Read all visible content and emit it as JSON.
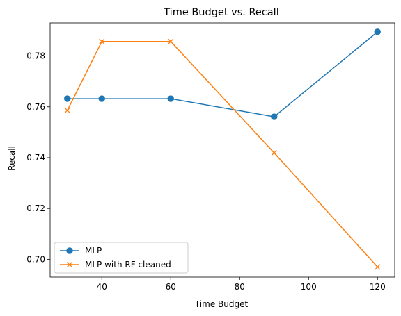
{
  "chart_data": {
    "type": "line",
    "title": "Time Budget vs. Recall",
    "xlabel": "Time Budget",
    "ylabel": "Recall",
    "xlim": [
      25,
      125
    ],
    "ylim": [
      0.693,
      0.793
    ],
    "x_ticks": [
      40,
      60,
      80,
      100,
      120
    ],
    "y_ticks": [
      0.7,
      0.72,
      0.74,
      0.76,
      0.78
    ],
    "y_tick_labels": [
      "0.70",
      "0.72",
      "0.74",
      "0.76",
      "0.78"
    ],
    "grid": false,
    "legend_position": "lower-left",
    "series": [
      {
        "name": "MLP",
        "color": "#1f77b4",
        "marker": "circle",
        "x": [
          30,
          40,
          60,
          90,
          120
        ],
        "y": [
          0.7632,
          0.7632,
          0.7632,
          0.7561,
          0.7895
        ]
      },
      {
        "name": "MLP with RF cleaned",
        "color": "#ff7f0e",
        "marker": "x",
        "x": [
          30,
          40,
          60,
          90,
          120
        ],
        "y": [
          0.7586,
          0.7857,
          0.7857,
          0.7419,
          0.697
        ]
      }
    ]
  }
}
